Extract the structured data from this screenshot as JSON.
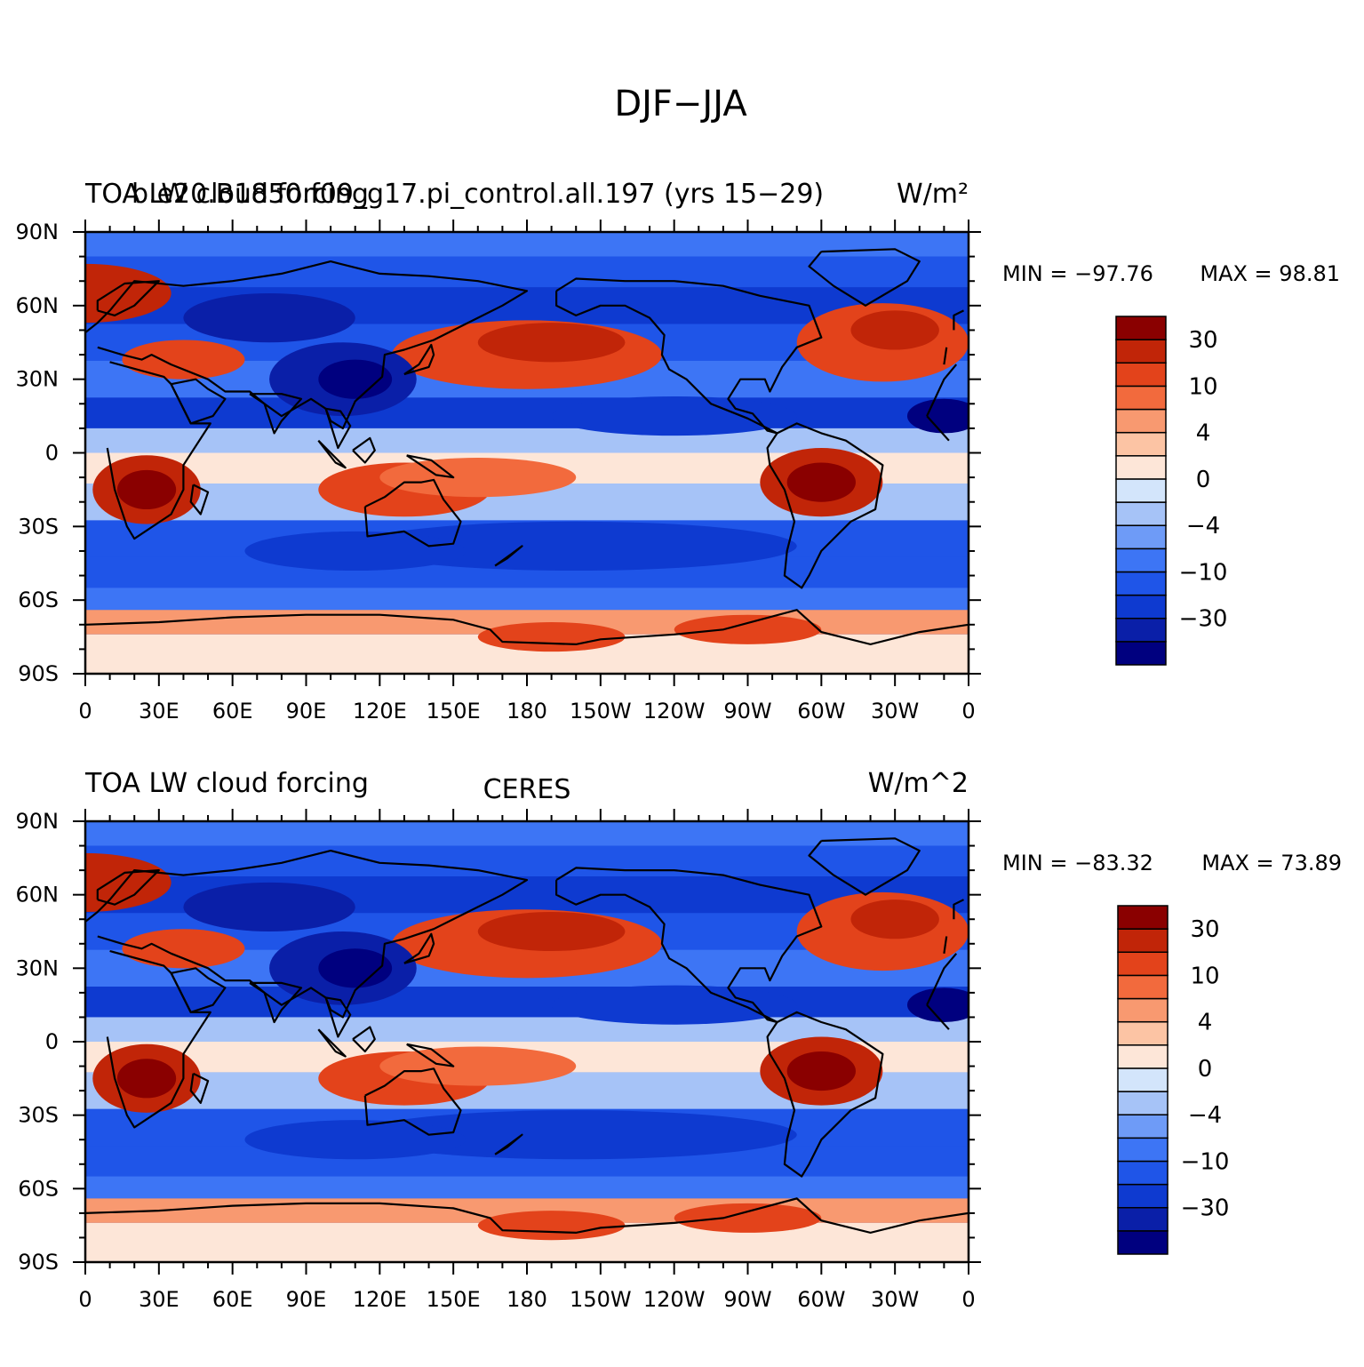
{
  "figure": {
    "title": "DJF−JJA"
  },
  "colorbar": {
    "colors": [
      "#00007f",
      "#0a1fa8",
      "#0e3ad0",
      "#1f55e8",
      "#3d75f5",
      "#6e9bf7",
      "#a6c3f7",
      "#d3e5fb",
      "#fde6d8",
      "#fcc4a4",
      "#f89970",
      "#f26a3d",
      "#e3431b",
      "#c12508",
      "#8a0000"
    ],
    "labels": [
      {
        "text": "30",
        "after_bin": 13
      },
      {
        "text": "10",
        "after_bin": 11
      },
      {
        "text": "4",
        "after_bin": 9
      },
      {
        "text": "0",
        "after_bin": 7
      },
      {
        "text": "−4",
        "after_bin": 5
      },
      {
        "text": "−10",
        "after_bin": 3
      },
      {
        "text": "−30",
        "after_bin": 1
      }
    ]
  },
  "axes": {
    "lon_ticks": [
      "0",
      "30E",
      "60E",
      "90E",
      "120E",
      "150E",
      "180",
      "150W",
      "120W",
      "90W",
      "60W",
      "30W",
      "0"
    ],
    "lat_ticks": [
      "90N",
      "60N",
      "30N",
      "0",
      "30S",
      "60S",
      "90S"
    ]
  },
  "panels": [
    {
      "left_title": "TOA LW cloud forcing",
      "overlay_title": "b.e20.B1850.f09_g17.pi_control.all.197 (yrs 15−29)",
      "center_title": "",
      "units": "W/m²",
      "min_label": "MIN = −97.76",
      "max_label": "MAX =   98.81"
    },
    {
      "left_title": "TOA LW cloud forcing",
      "overlay_title": "",
      "center_title": "CERES",
      "units": "W/m^2",
      "min_label": "MIN = −83.32",
      "max_label": "MAX =   73.89"
    }
  ],
  "map_field": {
    "bands": [
      {
        "lat": 85,
        "level": 4
      },
      {
        "lat": 75,
        "level": 3
      },
      {
        "lat": 60,
        "level": 2
      },
      {
        "lat": 45,
        "level": 3
      },
      {
        "lat": 30,
        "level": 4
      },
      {
        "lat": 15,
        "level": 2
      },
      {
        "lat": 5,
        "level": 6
      },
      {
        "lat": -5,
        "level": 8
      },
      {
        "lat": -20,
        "level": 6
      },
      {
        "lat": -35,
        "level": 3
      },
      {
        "lat": -50,
        "level": 3
      },
      {
        "lat": -60,
        "level": 4
      },
      {
        "lat": -68,
        "level": 10
      },
      {
        "lat": -80,
        "level": 8
      }
    ],
    "blobs": [
      {
        "lon": 0,
        "lat": 65,
        "rlon": 35,
        "rlat": 12,
        "level": 13
      },
      {
        "lon": 40,
        "lat": 38,
        "rlon": 25,
        "rlat": 8,
        "level": 12
      },
      {
        "lon": 180,
        "lat": 40,
        "rlon": 55,
        "rlat": 14,
        "level": 12
      },
      {
        "lon": 190,
        "lat": 45,
        "rlon": 30,
        "rlat": 8,
        "level": 13
      },
      {
        "lon": 325,
        "lat": 45,
        "rlon": 35,
        "rlat": 16,
        "level": 12
      },
      {
        "lon": 330,
        "lat": 50,
        "rlon": 18,
        "rlat": 8,
        "level": 13
      },
      {
        "lon": 105,
        "lat": 30,
        "rlon": 30,
        "rlat": 15,
        "level": 1
      },
      {
        "lon": 110,
        "lat": 30,
        "rlon": 15,
        "rlat": 8,
        "level": 0
      },
      {
        "lon": 75,
        "lat": 55,
        "rlon": 35,
        "rlat": 10,
        "level": 1
      },
      {
        "lon": 25,
        "lat": -15,
        "rlon": 22,
        "rlat": 14,
        "level": 13
      },
      {
        "lon": 25,
        "lat": -15,
        "rlon": 12,
        "rlat": 8,
        "level": 14
      },
      {
        "lon": 130,
        "lat": -15,
        "rlon": 35,
        "rlat": 11,
        "level": 12
      },
      {
        "lon": 160,
        "lat": -10,
        "rlon": 40,
        "rlat": 8,
        "level": 11
      },
      {
        "lon": 300,
        "lat": -12,
        "rlon": 25,
        "rlat": 14,
        "level": 13
      },
      {
        "lon": 300,
        "lat": -12,
        "rlon": 14,
        "rlat": 8,
        "level": 14
      },
      {
        "lon": 350,
        "lat": 15,
        "rlon": 15,
        "rlat": 7,
        "level": 0
      },
      {
        "lon": 240,
        "lat": 15,
        "rlon": 50,
        "rlat": 8,
        "level": 2
      },
      {
        "lon": 200,
        "lat": -38,
        "rlon": 90,
        "rlat": 10,
        "level": 2
      },
      {
        "lon": 110,
        "lat": -40,
        "rlon": 45,
        "rlat": 8,
        "level": 2
      },
      {
        "lon": 270,
        "lat": -72,
        "rlon": 30,
        "rlat": 6,
        "level": 12
      },
      {
        "lon": 190,
        "lat": -75,
        "rlon": 30,
        "rlat": 6,
        "level": 12
      }
    ]
  }
}
